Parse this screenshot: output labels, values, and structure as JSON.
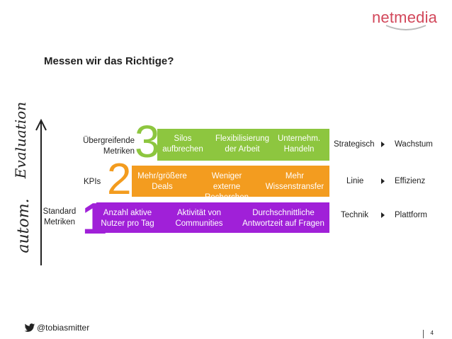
{
  "logo": {
    "text": "netmedia"
  },
  "title": "Messen wir das Richtige?",
  "axis": {
    "lower_label": "autom.",
    "upper_label": "Evaluation"
  },
  "levels": [
    {
      "number": "3",
      "label": "Übergreifende\nMetriken",
      "color": "#8dc63f",
      "cells": [
        "Silos\naufbrechen",
        "Flexibilisierung\nder Arbeit",
        "Unternehm.\nHandeln"
      ],
      "right_left": "Strategisch",
      "right_right": "Wachstum"
    },
    {
      "number": "2",
      "label": "KPIs",
      "color": "#f39c1f",
      "cells": [
        "Mehr/größere\nDeals",
        "Weniger\nexterne\nRecherchen",
        "Mehr\nWissenstransfer"
      ],
      "right_left": "Linie",
      "right_right": "Effizienz"
    },
    {
      "number": "1",
      "label": "Standard\nMetriken",
      "color": "#a020d8",
      "cells": [
        "Anzahl aktive\nNutzer pro Tag",
        "Aktivität von\nCommunities",
        "Durchschnittliche\nAntwortzeit auf Fragen"
      ],
      "right_left": "Technik",
      "right_right": "Plattform"
    }
  ],
  "footer": {
    "handle": "@tobiasmitter",
    "icon": "twitter-bird-icon",
    "page": "4"
  }
}
